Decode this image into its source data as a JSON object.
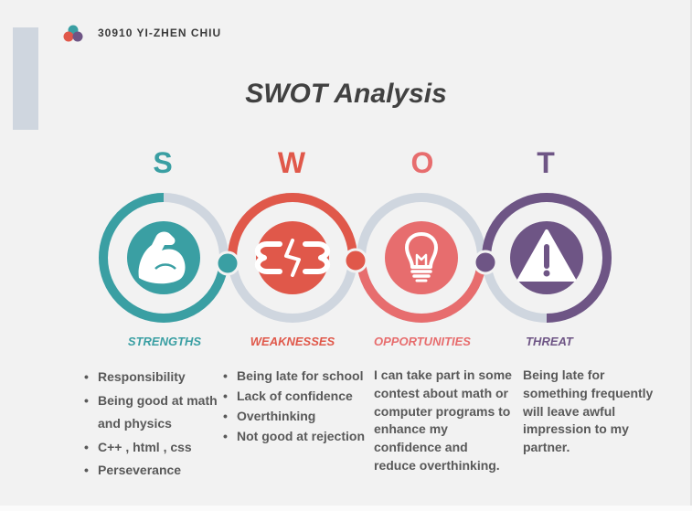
{
  "header": {
    "author": "30910 YI-ZHEN CHIU"
  },
  "title": "SWOT Analysis",
  "colors": {
    "teal": "#3a9fa3",
    "red": "#e0584a",
    "coral": "#e76d6e",
    "purple": "#6e5585",
    "ring_gray": "#cfd6df"
  },
  "sections": [
    {
      "letter": "S",
      "label": "STRENGTHS",
      "icon": "flexed-arm-icon",
      "items": [
        "Responsibility",
        "Being good at math and physics",
        "C++ , html , css",
        "Perseverance"
      ]
    },
    {
      "letter": "W",
      "label": "WEAKNESSES",
      "icon": "broken-link-icon",
      "items": [
        "Being late for school",
        "Lack of confidence",
        "Overthinking",
        "Not good at rejection"
      ]
    },
    {
      "letter": "O",
      "label": "OPPORTUNITIES",
      "icon": "lightbulb-icon",
      "text": "I can take part in some contest about math or computer programs to enhance my confidence and reduce overthinking."
    },
    {
      "letter": "T",
      "label": "THREAT",
      "icon": "warning-icon",
      "text": "Being late for something frequently will leave awful impression to my partner."
    }
  ]
}
